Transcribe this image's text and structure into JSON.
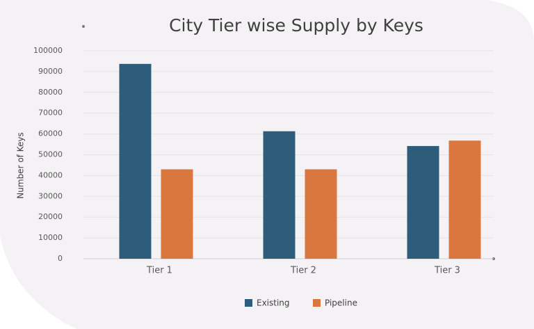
{
  "chart_data": {
    "type": "bar",
    "title": "City Tier wise Supply by Keys",
    "y_label": "Number of Keys",
    "categories": [
      "Tier 1",
      "Tier 2",
      "Tier 3"
    ],
    "series": [
      {
        "name": "Existing",
        "color": "#2d5d7b",
        "values": [
          93700,
          61300,
          54200
        ]
      },
      {
        "name": "Pipeline",
        "color": "#d9773f",
        "values": [
          43000,
          43000,
          56800
        ]
      }
    ],
    "ylim": [
      0,
      100000
    ],
    "yticks": [
      0,
      10000,
      20000,
      30000,
      40000,
      50000,
      60000,
      70000,
      80000,
      90000,
      100000
    ],
    "grid": true,
    "legend": "bottom"
  }
}
